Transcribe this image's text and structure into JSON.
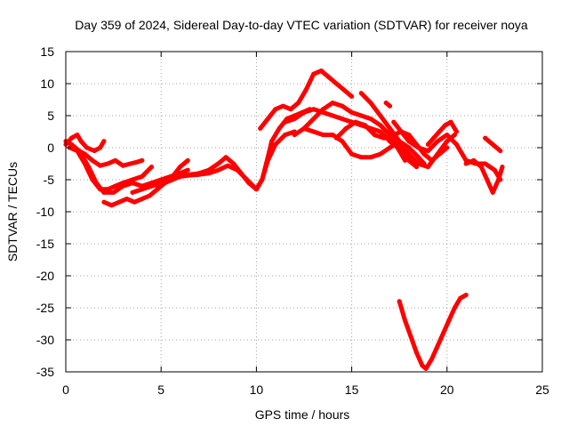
{
  "chart_data": {
    "type": "scatter",
    "title": "Day 359 of 2024, Sidereal Day-to-day VTEC variation (SDTVAR) for receiver noya",
    "xlabel": "GPS time / hours",
    "ylabel": "SDTVAR / TECUs",
    "xlim": [
      0,
      25
    ],
    "ylim": [
      -35,
      15
    ],
    "xticks": [
      0,
      5,
      10,
      15,
      20,
      25
    ],
    "yticks": [
      -35,
      -30,
      -25,
      -20,
      -15,
      -10,
      -5,
      0,
      5,
      10,
      15
    ],
    "grid": true,
    "color": "#ff0000",
    "series": [
      {
        "name": "track-1",
        "x": [
          0,
          0.3,
          0.7,
          1.0,
          1.4,
          1.8,
          2.2,
          2.6,
          3.0,
          3.4,
          3.8,
          4.0
        ],
        "y": [
          1,
          0.5,
          -0.5,
          -1,
          -2,
          -2.8,
          -2.5,
          -2,
          -2.8,
          -2.5,
          -2.2,
          -2
        ]
      },
      {
        "name": "track-2",
        "x": [
          0,
          0.3,
          0.6,
          0.8,
          1.1,
          1.5,
          1.8,
          2.0
        ],
        "y": [
          0.5,
          1.5,
          2,
          1,
          0,
          -0.5,
          0,
          1
        ]
      },
      {
        "name": "track-3",
        "x": [
          0.2,
          0.6,
          1.0,
          1.4,
          1.8,
          2.2,
          2.6,
          3.0,
          3.5,
          4.0,
          4.5
        ],
        "y": [
          0,
          -0.5,
          -2.5,
          -5,
          -6.5,
          -6.5,
          -6,
          -5.5,
          -5,
          -4.5,
          -3
        ]
      },
      {
        "name": "track-4",
        "x": [
          0.8,
          1.2,
          1.6,
          2.0,
          2.5,
          3.0,
          3.5,
          4.0,
          4.5,
          5.0,
          5.5,
          6.0,
          6.4
        ],
        "y": [
          -1,
          -3,
          -5.5,
          -7,
          -7,
          -6,
          -5.5,
          -6,
          -5.5,
          -5,
          -4.5,
          -4,
          -3.5
        ]
      },
      {
        "name": "track-5",
        "x": [
          2.0,
          2.4,
          2.8,
          3.2,
          3.6,
          4.0,
          4.4,
          4.8,
          5.2,
          5.6,
          6.0,
          6.4
        ],
        "y": [
          -8.5,
          -9,
          -8.5,
          -8,
          -8.5,
          -8,
          -7.5,
          -6.5,
          -5.5,
          -4.5,
          -3,
          -2
        ]
      },
      {
        "name": "track-6",
        "x": [
          3.5,
          4.0,
          4.5,
          5.0,
          5.5,
          6.0,
          6.5,
          7.0,
          7.5,
          8.0,
          8.4,
          8.8,
          9.2,
          9.6,
          10.0,
          10.3,
          10.6,
          11.0,
          11.5,
          12.0
        ],
        "y": [
          -7,
          -6.5,
          -6,
          -5.5,
          -5,
          -4.5,
          -4.2,
          -4,
          -3.5,
          -2.5,
          -1.5,
          -2.5,
          -4,
          -5.5,
          -6.5,
          -5,
          -2,
          0.5,
          2,
          2.5
        ]
      },
      {
        "name": "track-7",
        "x": [
          4.8,
          5.2,
          5.6,
          6.0,
          6.5,
          7.0,
          7.5,
          8.0,
          8.5,
          9.0,
          9.5,
          10.0,
          10.3,
          10.6,
          10.8,
          11.2,
          11.6,
          12.0,
          12.4,
          12.8
        ],
        "y": [
          -6,
          -5.5,
          -5,
          -4.5,
          -4.3,
          -4.2,
          -4,
          -3.5,
          -2.8,
          -3.5,
          -5,
          -6.5,
          -5,
          -1.5,
          1,
          3,
          4.5,
          5,
          5.5,
          6
        ]
      },
      {
        "name": "track-8",
        "x": [
          10.2,
          10.6,
          11.0,
          11.4,
          11.8,
          12.2,
          12.6,
          13.0,
          13.4,
          13.8,
          14.2,
          14.6,
          15.0
        ],
        "y": [
          3,
          4.5,
          6,
          6.5,
          6,
          7,
          9,
          11.5,
          12,
          11,
          10,
          9,
          8
        ]
      },
      {
        "name": "track-9",
        "x": [
          11.5,
          12.0,
          12.5,
          13.0,
          13.5,
          14.0,
          14.5,
          15.0,
          15.5,
          16.0,
          16.5,
          17.0,
          17.4,
          17.8
        ],
        "y": [
          4,
          4.5,
          5.5,
          6,
          5.5,
          5,
          4.5,
          4,
          3.5,
          3,
          2.5,
          1,
          0,
          -2
        ]
      },
      {
        "name": "track-10",
        "x": [
          12.0,
          12.5,
          13.0,
          13.5,
          14.0,
          14.5,
          15.0,
          15.5,
          16.0,
          16.5,
          17.0,
          17.5,
          18.0,
          18.4
        ],
        "y": [
          2,
          3,
          4.5,
          6,
          7,
          6.5,
          5.5,
          5,
          4.5,
          3.5,
          2,
          0,
          -2,
          -3
        ]
      },
      {
        "name": "track-11",
        "x": [
          12.5,
          13.0,
          13.5,
          14.0,
          14.5,
          15.0,
          15.5,
          16.0,
          16.5,
          17.0,
          17.5,
          18.0,
          18.5,
          18.8
        ],
        "y": [
          3,
          2.5,
          2,
          2,
          1,
          -1,
          -1.5,
          -1.5,
          -1,
          0,
          1,
          0,
          -1.5,
          -2.5
        ]
      },
      {
        "name": "track-12",
        "x": [
          14.2,
          14.7,
          15.2,
          15.7,
          16.2,
          16.7,
          17.2,
          17.6,
          18.0,
          18.4,
          18.8,
          19.2,
          19.6,
          20.0
        ],
        "y": [
          1.5,
          3,
          4,
          3.5,
          2,
          1.5,
          2,
          2.5,
          2,
          0.5,
          -1,
          -2,
          -1,
          0
        ]
      },
      {
        "name": "track-13",
        "x": [
          15.5,
          16.0,
          16.5,
          17.0,
          17.5,
          18.0,
          18.5,
          19.0,
          19.5,
          20.0,
          20.4
        ],
        "y": [
          8.5,
          7,
          5,
          3,
          1,
          -1,
          -2.5,
          -3,
          -1,
          1,
          2
        ]
      },
      {
        "name": "track-14",
        "x": [
          16.8,
          17.0
        ],
        "y": [
          7,
          6.5
        ]
      },
      {
        "name": "track-15",
        "x": [
          17.2,
          17.6,
          18.0,
          18.5,
          19.0,
          19.5,
          20.0,
          20.5,
          21.0,
          21.5,
          22.0,
          22.5,
          22.8
        ],
        "y": [
          4,
          2.5,
          1,
          0,
          -0.5,
          1,
          2,
          0.5,
          -2,
          -2.5,
          -2.5,
          -3.5,
          -5
        ]
      },
      {
        "name": "track-16",
        "x": [
          19.0,
          19.3,
          19.6,
          19.9,
          20.2,
          20.5
        ],
        "y": [
          0.5,
          1.5,
          2.5,
          3.5,
          4,
          2.5
        ]
      },
      {
        "name": "track-17",
        "x": [
          21.0,
          21.4,
          21.8,
          22.1,
          22.4,
          22.7,
          22.9
        ],
        "y": [
          -2.5,
          -2,
          -3,
          -5,
          -7,
          -5,
          -3
        ]
      },
      {
        "name": "track-18",
        "x": [
          22.0,
          22.4,
          22.8
        ],
        "y": [
          1.5,
          0.5,
          -0.5
        ]
      },
      {
        "name": "track-19",
        "x": [
          17.5,
          17.8,
          18.1,
          18.4,
          18.7,
          18.9,
          19.2,
          19.5,
          19.8,
          20.1,
          20.4,
          20.7,
          21.0
        ],
        "y": [
          -24,
          -27,
          -29.5,
          -32,
          -34,
          -34.5,
          -33,
          -31,
          -29,
          -27,
          -25,
          -23.5,
          -23
        ]
      }
    ]
  }
}
